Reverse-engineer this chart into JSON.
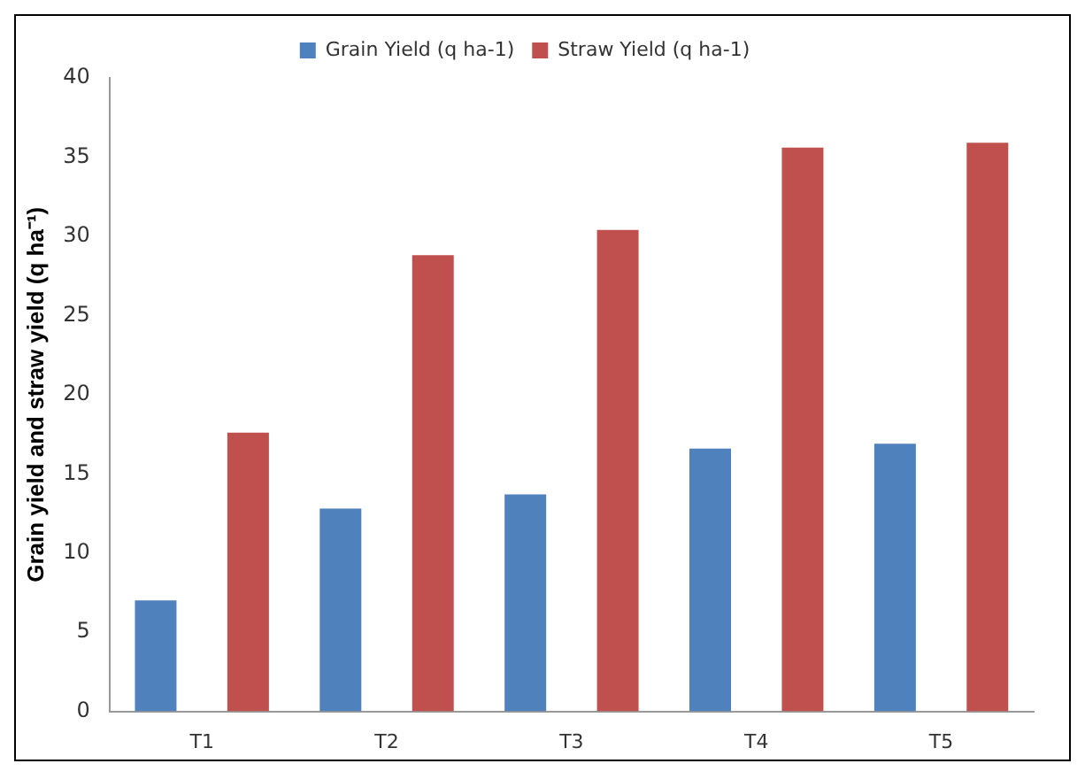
{
  "chart_data": {
    "type": "bar",
    "ylabel": "Grain yield and straw yield (q ha⁻¹)",
    "categories": [
      "T1",
      "T2",
      "T3",
      "T4",
      "T5"
    ],
    "series": [
      {
        "name": "Grain Yield (q ha-1)",
        "color": "#4f81bd",
        "values": [
          7.0,
          12.8,
          13.7,
          16.6,
          16.9
        ]
      },
      {
        "name": "Straw Yield (q ha-1)",
        "color": "#c0504d",
        "values": [
          17.6,
          28.8,
          30.4,
          35.6,
          35.9
        ]
      }
    ],
    "ylim": [
      0,
      40
    ],
    "yticks": [
      0,
      5,
      10,
      15,
      20,
      25,
      30,
      35,
      40
    ],
    "grid": false,
    "legend": "top"
  }
}
